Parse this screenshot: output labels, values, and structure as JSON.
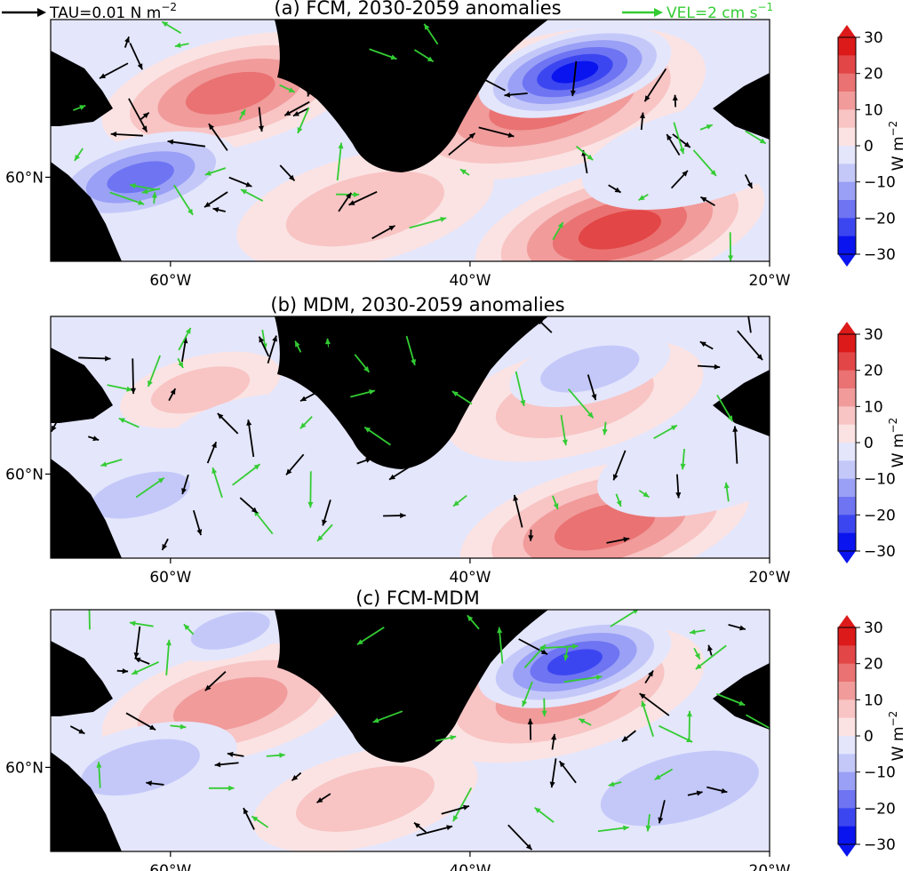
{
  "chart_data": {
    "type": "heatmap",
    "legend": {
      "tau_key": "TAU=0.01 N m",
      "tau_sup": "−2",
      "vel_key": "VEL=2 cm s",
      "vel_sup": "−1",
      "tau_color": "#000000",
      "vel_color": "#33cc33"
    },
    "colorbar": {
      "ticks": [
        "30",
        "20",
        "10",
        "0",
        "−10",
        "−20",
        "−30"
      ],
      "label": "W m",
      "label_sup": "−2",
      "vmin": -30,
      "vmax": 30,
      "colors": [
        "#0a14ee",
        "#3c46f0",
        "#6e74f2",
        "#9aa0f5",
        "#c4c8f9",
        "#e4e6fb",
        "#fbe3e3",
        "#f8c4c4",
        "#f19b9b",
        "#ea7272",
        "#e24646",
        "#dc1a1a"
      ]
    },
    "x_tick_labels": [
      "60°W",
      "40°W",
      "20°W"
    ],
    "y_tick_labels": [
      "60°N"
    ],
    "panels": [
      {
        "title": "(a) FCM, 2030-2059 anomalies",
        "features": [
          {
            "lon": -56,
            "lat": 64,
            "r": 8,
            "v": 20
          },
          {
            "lon": -62,
            "lat": 60,
            "r": 6,
            "v": -18
          },
          {
            "lon": -47,
            "lat": 58.5,
            "r": 8,
            "v": 10
          },
          {
            "lon": -35,
            "lat": 63.5,
            "r": 10,
            "v": 22
          },
          {
            "lon": -33,
            "lat": 65,
            "r": 6,
            "v": -28
          },
          {
            "lon": -30,
            "lat": 57.5,
            "r": 9,
            "v": 26
          },
          {
            "lon": -25,
            "lat": 61,
            "r": 7,
            "v": -6
          }
        ]
      },
      {
        "title": "(b) MDM, 2030-2059 anomalies",
        "features": [
          {
            "lon": -58,
            "lat": 64,
            "r": 5,
            "v": 8
          },
          {
            "lon": -55,
            "lat": 62,
            "r": 5,
            "v": -6
          },
          {
            "lon": -33,
            "lat": 63.5,
            "r": 8,
            "v": 12
          },
          {
            "lon": -32,
            "lat": 65,
            "r": 5,
            "v": -8
          },
          {
            "lon": -31,
            "lat": 57.5,
            "r": 9,
            "v": 22
          },
          {
            "lon": -24,
            "lat": 60.5,
            "r": 7,
            "v": -6
          },
          {
            "lon": -62,
            "lat": 59,
            "r": 5,
            "v": -8
          }
        ]
      },
      {
        "title": "(c) FCM-MDM",
        "features": [
          {
            "lon": -56,
            "lat": 63,
            "r": 8,
            "v": 16
          },
          {
            "lon": -62,
            "lat": 60,
            "r": 6,
            "v": -12
          },
          {
            "lon": -47,
            "lat": 58.5,
            "r": 7,
            "v": 9
          },
          {
            "lon": -34,
            "lat": 63.5,
            "r": 9,
            "v": 16
          },
          {
            "lon": -33,
            "lat": 65,
            "r": 6,
            "v": -26
          },
          {
            "lon": -26,
            "lat": 59,
            "r": 8,
            "v": -12
          },
          {
            "lon": -56,
            "lat": 66.5,
            "r": 4,
            "v": -8
          }
        ]
      }
    ]
  }
}
